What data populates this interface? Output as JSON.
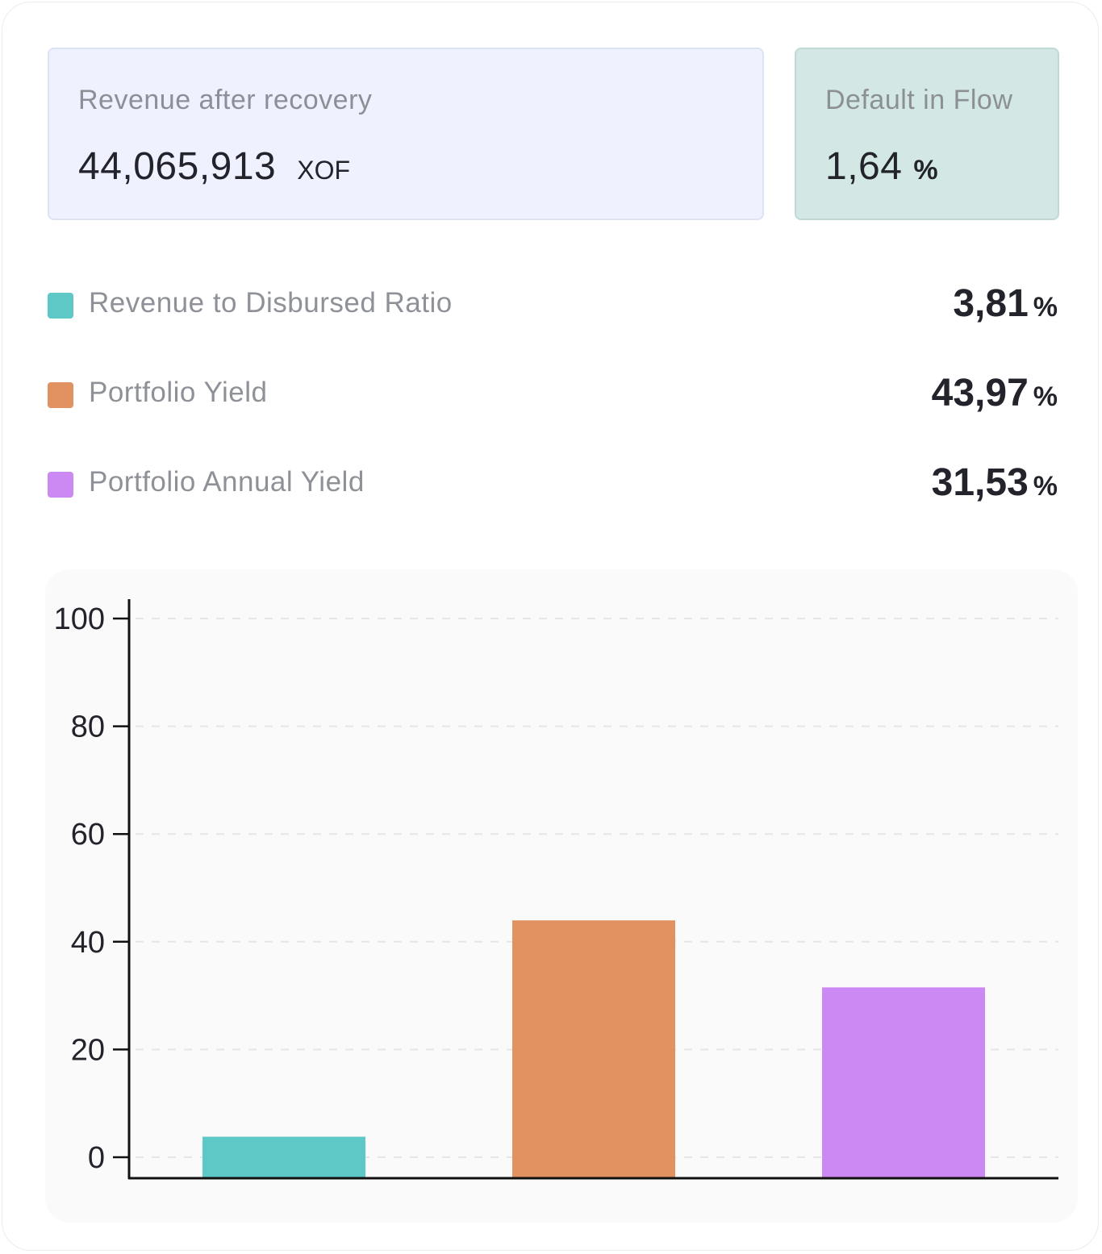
{
  "revenue": {
    "label": "Revenue after recovery",
    "value": "44,065,913",
    "unit": "XOF"
  },
  "default_in_flow": {
    "label": "Default in Flow",
    "value": "1,64",
    "unit": "%"
  },
  "metrics": [
    {
      "label": "Revenue to Disbursed Ratio",
      "value": "3,81",
      "unit": "%",
      "color": "#5ec8c6"
    },
    {
      "label": "Portfolio Yield",
      "value": "43,97",
      "unit": "%",
      "color": "#e29261"
    },
    {
      "label": "Portfolio Annual Yield",
      "value": "31,53",
      "unit": "%",
      "color": "#cc89f3"
    }
  ],
  "chart_data": {
    "type": "bar",
    "categories": [
      "Revenue to Disbursed Ratio",
      "Portfolio Yield",
      "Portfolio Annual Yield"
    ],
    "values": [
      3.81,
      43.97,
      31.53
    ],
    "colors": [
      "#5ec8c6",
      "#e29261",
      "#cc89f3"
    ],
    "yticks": [
      "0",
      "20",
      "40",
      "60",
      "80",
      "100"
    ],
    "ylim": [
      -4,
      103
    ],
    "grid": true,
    "xlabel": "",
    "ylabel": ""
  }
}
